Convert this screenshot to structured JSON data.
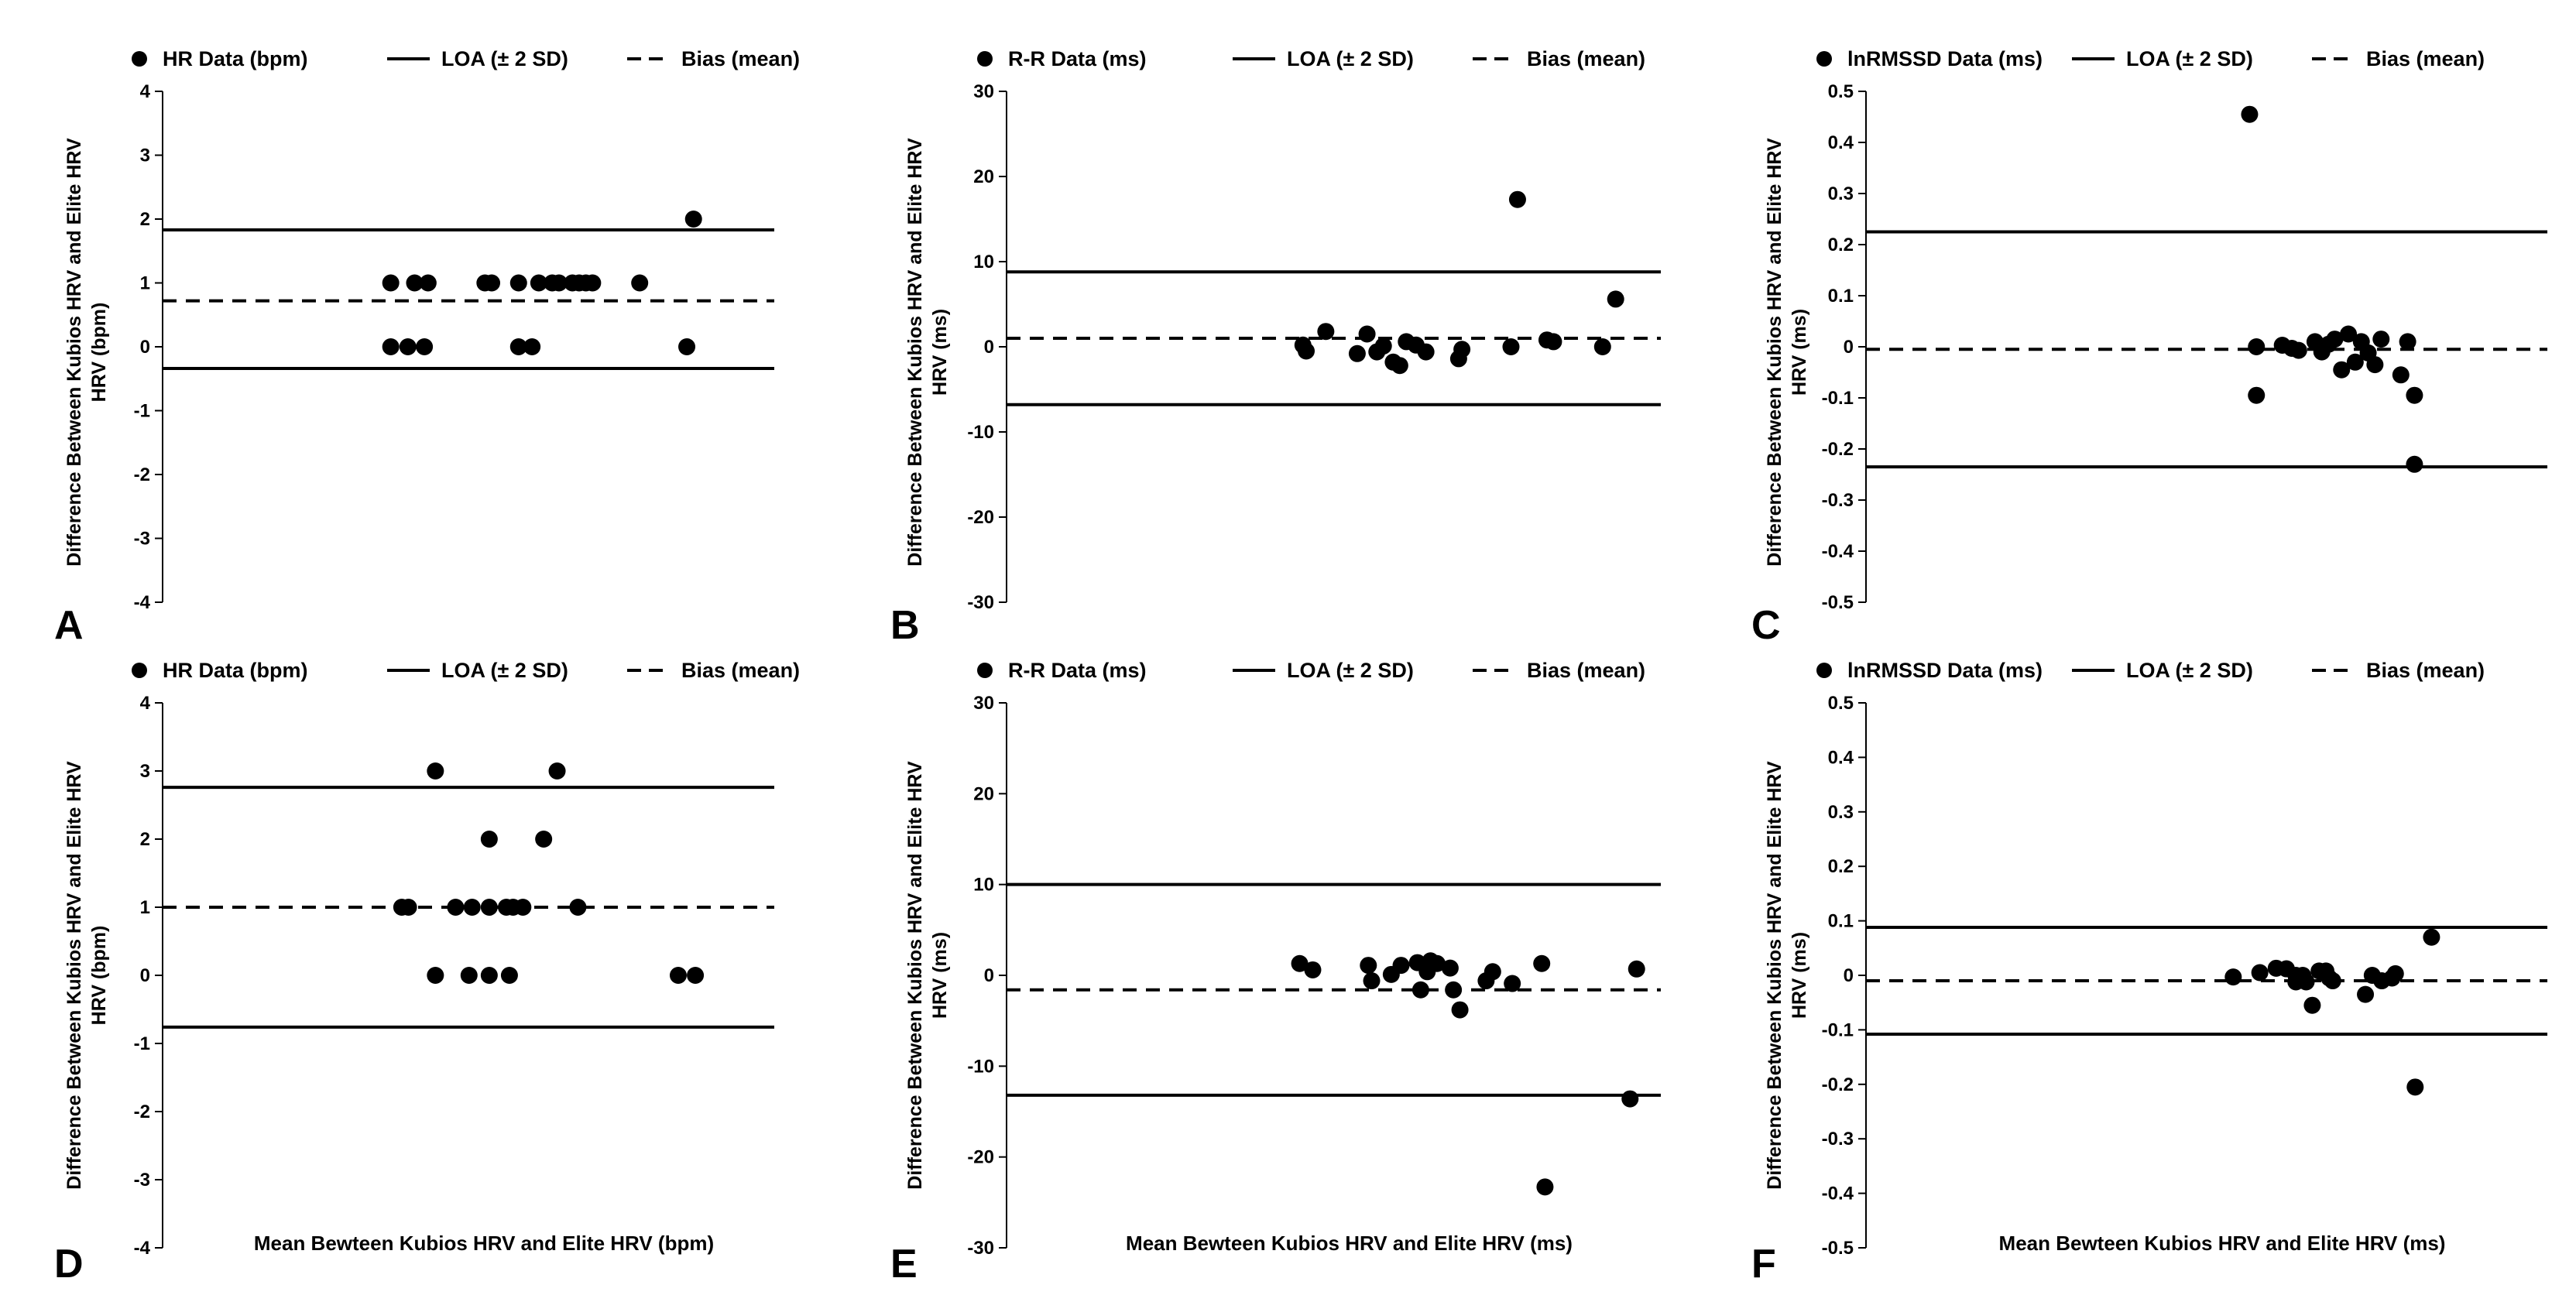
{
  "figure": {
    "ylabel": "Difference Between Kubios HRV and Elite HRV",
    "legend_loa": "LOA (± 2 SD)",
    "legend_bias": "Bias (mean)"
  },
  "chart_data": [
    {
      "type": "scatter",
      "panel": "A",
      "ylabel_unit": "(bpm)",
      "xlabel": "",
      "legend_data": "HR Data (bpm)",
      "ylim": [
        -4,
        4
      ],
      "yticks": [
        4,
        3,
        2,
        1,
        0,
        -1,
        -2,
        -3,
        -4
      ],
      "xlim": [
        0,
        1
      ],
      "loa_upper": 1.83,
      "loa_lower": -0.34,
      "bias": 0.72,
      "points": [
        {
          "x": 0.373,
          "y": 1
        },
        {
          "x": 0.412,
          "y": 1
        },
        {
          "x": 0.434,
          "y": 1
        },
        {
          "x": 0.373,
          "y": 0
        },
        {
          "x": 0.401,
          "y": 0
        },
        {
          "x": 0.428,
          "y": 0
        },
        {
          "x": 0.527,
          "y": 1
        },
        {
          "x": 0.538,
          "y": 1
        },
        {
          "x": 0.582,
          "y": 1
        },
        {
          "x": 0.615,
          "y": 1
        },
        {
          "x": 0.637,
          "y": 1
        },
        {
          "x": 0.648,
          "y": 1
        },
        {
          "x": 0.67,
          "y": 1
        },
        {
          "x": 0.681,
          "y": 1
        },
        {
          "x": 0.692,
          "y": 1
        },
        {
          "x": 0.703,
          "y": 1
        },
        {
          "x": 0.78,
          "y": 1
        },
        {
          "x": 0.582,
          "y": 0
        },
        {
          "x": 0.604,
          "y": 0
        },
        {
          "x": 0.857,
          "y": 0
        },
        {
          "x": 0.868,
          "y": 2
        }
      ]
    },
    {
      "type": "scatter",
      "panel": "B",
      "ylabel_unit": "(ms)",
      "xlabel": "",
      "legend_data": "R-R Data (ms)",
      "ylim": [
        -30,
        30
      ],
      "yticks": [
        30,
        20,
        10,
        0,
        -10,
        -20,
        -30
      ],
      "xlim": [
        0,
        1
      ],
      "loa_upper": 8.8,
      "loa_lower": -6.8,
      "bias": 1.0,
      "points": [
        {
          "x": 0.453,
          "y": 0.2
        },
        {
          "x": 0.458,
          "y": -0.5
        },
        {
          "x": 0.488,
          "y": 1.8
        },
        {
          "x": 0.536,
          "y": -0.8
        },
        {
          "x": 0.551,
          "y": 1.5
        },
        {
          "x": 0.566,
          "y": -0.6
        },
        {
          "x": 0.576,
          "y": 0.1
        },
        {
          "x": 0.591,
          "y": -1.8
        },
        {
          "x": 0.601,
          "y": -2.2
        },
        {
          "x": 0.611,
          "y": 0.6
        },
        {
          "x": 0.626,
          "y": 0.2
        },
        {
          "x": 0.641,
          "y": -0.6
        },
        {
          "x": 0.691,
          "y": -1.4
        },
        {
          "x": 0.696,
          "y": -0.3
        },
        {
          "x": 0.771,
          "y": 0.0
        },
        {
          "x": 0.781,
          "y": 17.3
        },
        {
          "x": 0.826,
          "y": 0.8
        },
        {
          "x": 0.836,
          "y": 0.6
        },
        {
          "x": 0.911,
          "y": 0.0
        },
        {
          "x": 0.931,
          "y": 5.6
        }
      ]
    },
    {
      "type": "scatter",
      "panel": "C",
      "ylabel_unit": "(ms)",
      "xlabel": "",
      "legend_data": "lnRMSSD Data (ms)",
      "ylim": [
        -0.5,
        0.5
      ],
      "yticks": [
        0.5,
        0.4,
        0.3,
        0.2,
        0.1,
        0,
        -0.1,
        -0.2,
        -0.3,
        -0.4,
        -0.5
      ],
      "xlim": [
        0,
        1
      ],
      "loa_upper": 0.225,
      "loa_lower": -0.235,
      "bias": -0.005,
      "points": [
        {
          "x": 0.563,
          "y": 0.455
        },
        {
          "x": 0.573,
          "y": 0.0
        },
        {
          "x": 0.573,
          "y": -0.095
        },
        {
          "x": 0.611,
          "y": 0.003
        },
        {
          "x": 0.625,
          "y": -0.003
        },
        {
          "x": 0.635,
          "y": -0.007
        },
        {
          "x": 0.659,
          "y": 0.01
        },
        {
          "x": 0.669,
          "y": -0.01
        },
        {
          "x": 0.679,
          "y": 0.005
        },
        {
          "x": 0.688,
          "y": 0.015
        },
        {
          "x": 0.698,
          "y": -0.045
        },
        {
          "x": 0.708,
          "y": 0.025
        },
        {
          "x": 0.718,
          "y": -0.03
        },
        {
          "x": 0.727,
          "y": 0.01
        },
        {
          "x": 0.737,
          "y": -0.012
        },
        {
          "x": 0.747,
          "y": -0.035
        },
        {
          "x": 0.756,
          "y": 0.015
        },
        {
          "x": 0.785,
          "y": -0.055
        },
        {
          "x": 0.795,
          "y": 0.01
        },
        {
          "x": 0.805,
          "y": -0.095
        },
        {
          "x": 0.805,
          "y": -0.23
        }
      ]
    },
    {
      "type": "scatter",
      "panel": "D",
      "ylabel_unit": "(bpm)",
      "xlabel": "Mean Bewteen Kubios HRV and Elite HRV (bpm)",
      "legend_data": "HR Data (bpm)",
      "ylim": [
        -4,
        4
      ],
      "yticks": [
        4,
        3,
        2,
        1,
        0,
        -1,
        -2,
        -3,
        -4
      ],
      "xlim": [
        0,
        1
      ],
      "loa_upper": 2.76,
      "loa_lower": -0.76,
      "bias": 1.0,
      "points": [
        {
          "x": 0.391,
          "y": 1
        },
        {
          "x": 0.402,
          "y": 1
        },
        {
          "x": 0.446,
          "y": 3
        },
        {
          "x": 0.446,
          "y": 0
        },
        {
          "x": 0.479,
          "y": 1
        },
        {
          "x": 0.501,
          "y": 0
        },
        {
          "x": 0.506,
          "y": 1
        },
        {
          "x": 0.534,
          "y": 0
        },
        {
          "x": 0.534,
          "y": 1
        },
        {
          "x": 0.534,
          "y": 2
        },
        {
          "x": 0.562,
          "y": 1
        },
        {
          "x": 0.567,
          "y": 0
        },
        {
          "x": 0.573,
          "y": 1
        },
        {
          "x": 0.589,
          "y": 1
        },
        {
          "x": 0.623,
          "y": 2
        },
        {
          "x": 0.645,
          "y": 3
        },
        {
          "x": 0.679,
          "y": 1
        },
        {
          "x": 0.843,
          "y": 0
        },
        {
          "x": 0.871,
          "y": 0
        }
      ]
    },
    {
      "type": "scatter",
      "panel": "E",
      "ylabel_unit": "(ms)",
      "xlabel": "Mean Bewteen Kubios HRV and Elite HRV (ms)",
      "legend_data": "R-R Data (ms)",
      "ylim": [
        -30,
        30
      ],
      "yticks": [
        30,
        20,
        10,
        0,
        -10,
        -20,
        -30
      ],
      "xlim": [
        0,
        1
      ],
      "loa_upper": 10.0,
      "loa_lower": -13.2,
      "bias": -1.6,
      "points": [
        {
          "x": 0.448,
          "y": 1.3
        },
        {
          "x": 0.468,
          "y": 0.6
        },
        {
          "x": 0.553,
          "y": 1.1
        },
        {
          "x": 0.558,
          "y": -0.6
        },
        {
          "x": 0.588,
          "y": 0.1
        },
        {
          "x": 0.603,
          "y": 1.1
        },
        {
          "x": 0.628,
          "y": 1.4
        },
        {
          "x": 0.633,
          "y": -1.6
        },
        {
          "x": 0.643,
          "y": 0.4
        },
        {
          "x": 0.648,
          "y": 1.6
        },
        {
          "x": 0.658,
          "y": 1.3
        },
        {
          "x": 0.678,
          "y": 0.8
        },
        {
          "x": 0.683,
          "y": -1.6
        },
        {
          "x": 0.693,
          "y": -3.8
        },
        {
          "x": 0.733,
          "y": -0.6
        },
        {
          "x": 0.743,
          "y": 0.4
        },
        {
          "x": 0.773,
          "y": -0.9
        },
        {
          "x": 0.818,
          "y": 1.3
        },
        {
          "x": 0.823,
          "y": -23.3
        },
        {
          "x": 0.953,
          "y": -13.6
        },
        {
          "x": 0.963,
          "y": 0.7
        }
      ]
    },
    {
      "type": "scatter",
      "panel": "F",
      "ylabel_unit": "(ms)",
      "xlabel": "Mean Bewteen Kubios HRV and Elite HRV (ms)",
      "legend_data": "lnRMSSD Data (ms)",
      "ylim": [
        -0.5,
        0.5
      ],
      "yticks": [
        0.5,
        0.4,
        0.3,
        0.2,
        0.1,
        0,
        -0.1,
        -0.2,
        -0.3,
        -0.4,
        -0.5
      ],
      "xlim": [
        0,
        1
      ],
      "loa_upper": 0.088,
      "loa_lower": -0.108,
      "bias": -0.01,
      "points": [
        {
          "x": 0.539,
          "y": -0.003
        },
        {
          "x": 0.578,
          "y": 0.005
        },
        {
          "x": 0.602,
          "y": 0.013
        },
        {
          "x": 0.617,
          "y": 0.012
        },
        {
          "x": 0.631,
          "y": 0.0
        },
        {
          "x": 0.631,
          "y": -0.012
        },
        {
          "x": 0.641,
          "y": 0.0
        },
        {
          "x": 0.646,
          "y": -0.012
        },
        {
          "x": 0.655,
          "y": -0.055
        },
        {
          "x": 0.665,
          "y": 0.008
        },
        {
          "x": 0.675,
          "y": 0.008
        },
        {
          "x": 0.68,
          "y": -0.005
        },
        {
          "x": 0.685,
          "y": -0.01
        },
        {
          "x": 0.733,
          "y": -0.035
        },
        {
          "x": 0.743,
          "y": 0.0
        },
        {
          "x": 0.757,
          "y": -0.01
        },
        {
          "x": 0.772,
          "y": -0.005
        },
        {
          "x": 0.777,
          "y": 0.003
        },
        {
          "x": 0.806,
          "y": -0.205
        },
        {
          "x": 0.83,
          "y": 0.07
        }
      ]
    }
  ]
}
